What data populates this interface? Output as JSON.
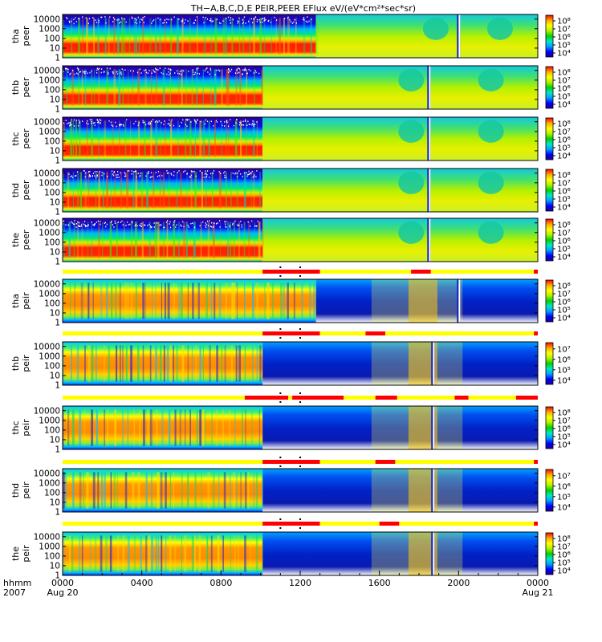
{
  "title": "TH−A,B,C,D,E PEIR,PEER EFlux eV/(eV*cm²*sec*sr)",
  "xaxis": {
    "corner_labels": [
      "hhmm",
      "2007"
    ],
    "ticks": [
      {
        "hour": 0,
        "label": "0000",
        "sub": "Aug 20"
      },
      {
        "hour": 4,
        "label": "0400",
        "sub": ""
      },
      {
        "hour": 8,
        "label": "0800",
        "sub": ""
      },
      {
        "hour": 12,
        "label": "1200",
        "sub": ""
      },
      {
        "hour": 16,
        "label": "1600",
        "sub": ""
      },
      {
        "hour": 20,
        "label": "2000",
        "sub": ""
      },
      {
        "hour": 24,
        "label": "0000",
        "sub": "Aug 21"
      }
    ]
  },
  "chart_data": {
    "type": "heatmap",
    "x_range_hours": [
      0,
      24
    ],
    "y_scale": "log",
    "y_range": [
      1,
      30000
    ],
    "y_ticks": [
      {
        "value": 10000,
        "label": "10000"
      },
      {
        "value": 1000,
        "label": "1000"
      },
      {
        "value": 100,
        "label": "100"
      },
      {
        "value": 10,
        "label": "10"
      },
      {
        "value": 1,
        "label": "1"
      }
    ],
    "colormap": [
      "#1a0096",
      "#0000ff",
      "#00a0ff",
      "#00e6c8",
      "#00d200",
      "#b4f000",
      "#ffff00",
      "#ffaa00",
      "#ff0000"
    ],
    "panels": [
      {
        "id": "tha_peer",
        "probe": "tha",
        "species": "peer",
        "kind": "electron",
        "transition_hour": 12.8,
        "cbar_ticks": [
          "10⁸",
          "10⁷",
          "10⁶",
          "10⁵",
          "10⁴"
        ],
        "cbar_range": [
          3.5,
          8.7
        ],
        "has_mode_bar": false
      },
      {
        "id": "thb_peer",
        "probe": "thb",
        "species": "peer",
        "kind": "electron",
        "transition_hour": 10.1,
        "cbar_ticks": [
          "10⁸",
          "10⁷",
          "10⁶",
          "10⁵",
          "10⁴"
        ],
        "cbar_range": [
          3.5,
          8.7
        ],
        "has_mode_bar": false
      },
      {
        "id": "thc_peer",
        "probe": "thc",
        "species": "peer",
        "kind": "electron",
        "transition_hour": 10.1,
        "cbar_ticks": [
          "10⁸",
          "10⁷",
          "10⁶",
          "10⁵",
          "10⁴"
        ],
        "cbar_range": [
          3.5,
          8.7
        ],
        "has_mode_bar": false
      },
      {
        "id": "thd_peer",
        "probe": "thd",
        "species": "peer",
        "kind": "electron",
        "transition_hour": 10.1,
        "cbar_ticks": [
          "10⁸",
          "10⁷",
          "10⁶",
          "10⁵",
          "10⁴"
        ],
        "cbar_range": [
          3.5,
          8.7
        ],
        "has_mode_bar": false
      },
      {
        "id": "the_peer",
        "probe": "the",
        "species": "peer",
        "kind": "electron",
        "transition_hour": 10.1,
        "cbar_ticks": [
          "10⁸",
          "10⁷",
          "10⁶",
          "10⁵",
          "10⁴"
        ],
        "cbar_range": [
          3.5,
          8.7
        ],
        "has_mode_bar": false
      },
      {
        "id": "tha_peir",
        "probe": "tha",
        "species": "peir",
        "kind": "ion",
        "transition_hour": 12.8,
        "cbar_ticks": [
          "10⁸",
          "10⁷",
          "10⁶",
          "10⁵",
          "10⁴"
        ],
        "cbar_range": [
          3.5,
          8.7
        ],
        "has_mode_bar": true
      },
      {
        "id": "thb_peir",
        "probe": "thb",
        "species": "peir",
        "kind": "ion",
        "transition_hour": 10.1,
        "cbar_ticks": [
          "10⁷",
          "10⁶",
          "10⁵",
          "10⁴"
        ],
        "cbar_range": [
          3.6,
          7.6
        ],
        "has_mode_bar": true
      },
      {
        "id": "thc_peir",
        "probe": "thc",
        "species": "peir",
        "kind": "ion",
        "transition_hour": 10.1,
        "cbar_ticks": [
          "10⁸",
          "10⁷",
          "10⁶",
          "10⁵",
          "10⁴"
        ],
        "cbar_range": [
          3.5,
          8.7
        ],
        "has_mode_bar": true
      },
      {
        "id": "thd_peir",
        "probe": "thd",
        "species": "peir",
        "kind": "ion",
        "transition_hour": 10.1,
        "cbar_ticks": [
          "10⁷",
          "10⁶",
          "10⁵",
          "10⁴"
        ],
        "cbar_range": [
          3.6,
          7.6
        ],
        "has_mode_bar": true
      },
      {
        "id": "the_peir",
        "probe": "the",
        "species": "peir",
        "kind": "ion",
        "transition_hour": 10.1,
        "cbar_ticks": [
          "10⁸",
          "10⁷",
          "10⁶",
          "10⁵",
          "10⁴"
        ],
        "cbar_range": [
          3.5,
          8.7
        ],
        "has_mode_bar": true
      }
    ],
    "mode_bars": [
      {
        "panel": "tha_peir",
        "segments": [
          [
            0,
            10.1,
            "#ffff00"
          ],
          [
            10.1,
            13.0,
            "#ff0000"
          ],
          [
            13.0,
            17.6,
            "#ffff00"
          ],
          [
            17.6,
            18.6,
            "#ff0000"
          ],
          [
            18.6,
            23.8,
            "#ffff00"
          ],
          [
            23.8,
            24,
            "#ff0000"
          ]
        ]
      },
      {
        "panel": "thb_peir",
        "segments": [
          [
            0,
            10.1,
            "#ffff00"
          ],
          [
            10.1,
            13.0,
            "#ff0000"
          ],
          [
            13.0,
            15.3,
            "#ffff00"
          ],
          [
            15.3,
            16.3,
            "#ff0000"
          ],
          [
            16.3,
            23.8,
            "#ffff00"
          ],
          [
            23.8,
            24,
            "#ff0000"
          ]
        ]
      },
      {
        "panel": "thc_peir",
        "segments": [
          [
            0,
            9.2,
            "#ffff00"
          ],
          [
            9.2,
            11.4,
            "#ff0000"
          ],
          [
            11.4,
            11.6,
            "#ffff00"
          ],
          [
            11.6,
            14.2,
            "#ff0000"
          ],
          [
            14.2,
            15.8,
            "#ffff00"
          ],
          [
            15.8,
            16.9,
            "#ff0000"
          ],
          [
            16.9,
            19.8,
            "#ffff00"
          ],
          [
            19.8,
            20.5,
            "#ff0000"
          ],
          [
            20.5,
            22.9,
            "#ffff00"
          ],
          [
            22.9,
            24,
            "#ff0000"
          ]
        ]
      },
      {
        "panel": "thd_peir",
        "segments": [
          [
            0,
            10.1,
            "#ffff00"
          ],
          [
            10.1,
            13.0,
            "#ff0000"
          ],
          [
            13.0,
            15.8,
            "#ffff00"
          ],
          [
            15.8,
            16.8,
            "#ff0000"
          ],
          [
            16.8,
            23.8,
            "#ffff00"
          ],
          [
            23.8,
            24,
            "#ff0000"
          ]
        ]
      },
      {
        "panel": "the_peir",
        "segments": [
          [
            0,
            10.1,
            "#ffff00"
          ],
          [
            10.1,
            13.0,
            "#ff0000"
          ],
          [
            13.0,
            16.0,
            "#ffff00"
          ],
          [
            16.0,
            17.0,
            "#ff0000"
          ],
          [
            17.0,
            23.8,
            "#ffff00"
          ],
          [
            23.8,
            24,
            "#ff0000"
          ]
        ]
      }
    ]
  }
}
